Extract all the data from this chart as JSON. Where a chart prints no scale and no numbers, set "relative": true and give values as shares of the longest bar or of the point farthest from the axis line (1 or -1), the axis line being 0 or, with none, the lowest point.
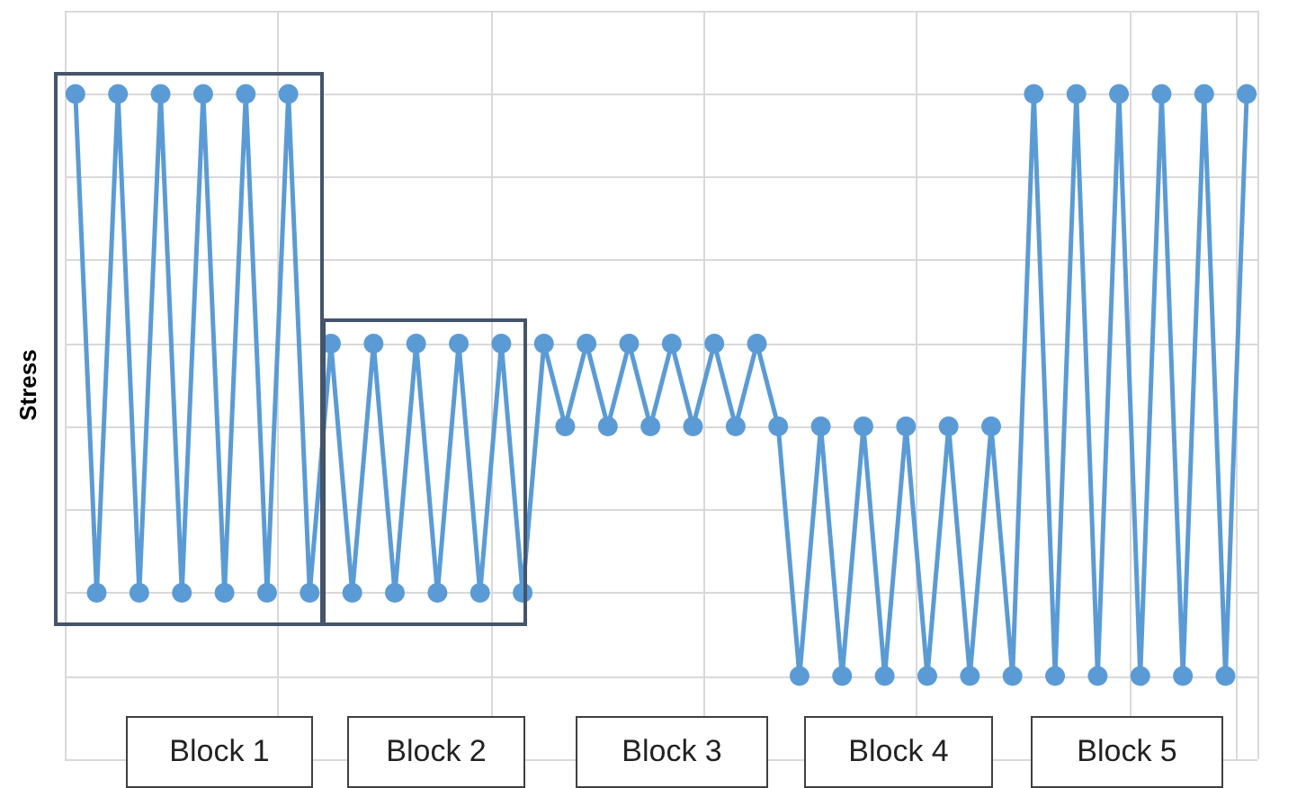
{
  "chart_data": {
    "type": "line",
    "relative": true,
    "ylabel": "Stress",
    "grid": true,
    "marker": "circle",
    "line_style": "solid",
    "categories": [
      null,
      null,
      null,
      null,
      null,
      null,
      null,
      null,
      null,
      null,
      null,
      null,
      null,
      null,
      null,
      null,
      null,
      null,
      null,
      null,
      null,
      null,
      null,
      null,
      null,
      null,
      null,
      null,
      null,
      null,
      null,
      null,
      null,
      null,
      null,
      null,
      null,
      null,
      null,
      null,
      null,
      null,
      null,
      null,
      null,
      null,
      null,
      null,
      null,
      null,
      null,
      null,
      null,
      null,
      null,
      null
    ],
    "series": [
      {
        "color": "#5b9bd5",
        "values": [
          1,
          0.143,
          1,
          0.143,
          1,
          0.143,
          1,
          0.143,
          1,
          0.143,
          1,
          0.143,
          0.571,
          0.143,
          0.571,
          0.143,
          0.571,
          0.143,
          0.571,
          0.143,
          0.571,
          0.143,
          0.571,
          0.429,
          0.571,
          0.429,
          0.571,
          0.429,
          0.571,
          0.429,
          0.571,
          0.429,
          0.571,
          0.429,
          0,
          0.429,
          0,
          0.429,
          0,
          0.429,
          0,
          0.429,
          0,
          0.429,
          0,
          1,
          0,
          1,
          0,
          1,
          0,
          1,
          0,
          1,
          0,
          1
        ]
      }
    ],
    "annotations": [
      "Block 1",
      "Block 2",
      "Block 3",
      "Block 4",
      "Block 5"
    ]
  }
}
